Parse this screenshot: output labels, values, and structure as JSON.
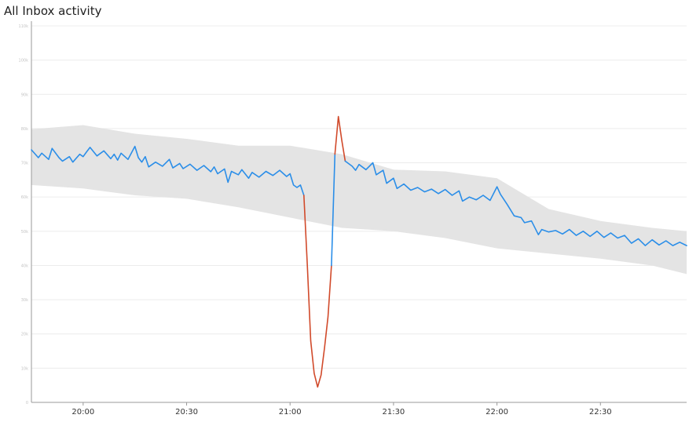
{
  "panel": {
    "title": "All Inbox activity"
  },
  "chart_data": {
    "type": "line",
    "title": "All Inbox activity",
    "xlabel": "",
    "ylabel": "",
    "x_range": [
      "19:45",
      "22:55"
    ],
    "ylim": [
      0,
      110000
    ],
    "y_ticks": [
      {
        "value": 0,
        "label": "0"
      },
      {
        "value": 10000,
        "label": "10k"
      },
      {
        "value": 20000,
        "label": "20k"
      },
      {
        "value": 30000,
        "label": "30k"
      },
      {
        "value": 40000,
        "label": "40k"
      },
      {
        "value": 50000,
        "label": "50k"
      },
      {
        "value": 60000,
        "label": "60k"
      },
      {
        "value": 70000,
        "label": "70k"
      },
      {
        "value": 80000,
        "label": "80k"
      },
      {
        "value": 90000,
        "label": "90k"
      },
      {
        "value": 100000,
        "label": "100k"
      },
      {
        "value": 110000,
        "label": "110k"
      }
    ],
    "x_ticks": [
      {
        "time": "20:00",
        "label": "20:00"
      },
      {
        "time": "20:30",
        "label": "20:30"
      },
      {
        "time": "21:00",
        "label": "21:00"
      },
      {
        "time": "21:30",
        "label": "21:30"
      },
      {
        "time": "22:00",
        "label": "22:00"
      },
      {
        "time": "22:30",
        "label": "22:30"
      }
    ],
    "grid": true,
    "legend": "none",
    "colors": {
      "line": "#2b8ee8",
      "anomaly": "#d14a2b",
      "band": "#e4e4e4",
      "grid": "#ececec",
      "axis": "#9a9a9a"
    },
    "band": {
      "x": [
        "19:45",
        "20:00",
        "20:15",
        "20:30",
        "20:45",
        "21:00",
        "21:15",
        "21:30",
        "21:45",
        "22:00",
        "22:15",
        "22:30",
        "22:45",
        "22:55"
      ],
      "upper": [
        79800,
        81000,
        78500,
        77000,
        75000,
        75000,
        72500,
        68000,
        67500,
        65500,
        56500,
        53000,
        51000,
        50000
      ],
      "lower": [
        63500,
        62500,
        60500,
        59500,
        57000,
        54000,
        51000,
        50000,
        48000,
        45000,
        43500,
        42000,
        40000,
        37500
      ]
    },
    "series": [
      {
        "values": [
          {
            "x": "19:45",
            "y": 73800
          },
          {
            "x": "19:47",
            "y": 71500
          },
          {
            "x": "19:48",
            "y": 72800
          },
          {
            "x": "19:50",
            "y": 71000
          },
          {
            "x": "19:51",
            "y": 74200
          },
          {
            "x": "19:53",
            "y": 71500
          },
          {
            "x": "19:54",
            "y": 70500
          },
          {
            "x": "19:56",
            "y": 71800
          },
          {
            "x": "19:57",
            "y": 70200
          },
          {
            "x": "19:59",
            "y": 72500
          },
          {
            "x": "20:00",
            "y": 71800
          },
          {
            "x": "20:01",
            "y": 73200
          },
          {
            "x": "20:02",
            "y": 74500
          },
          {
            "x": "20:04",
            "y": 72000
          },
          {
            "x": "20:06",
            "y": 73500
          },
          {
            "x": "20:08",
            "y": 71200
          },
          {
            "x": "20:09",
            "y": 72500
          },
          {
            "x": "20:10",
            "y": 70800
          },
          {
            "x": "20:11",
            "y": 72800
          },
          {
            "x": "20:13",
            "y": 71000
          },
          {
            "x": "20:15",
            "y": 74800
          },
          {
            "x": "20:16",
            "y": 71500
          },
          {
            "x": "20:17",
            "y": 70200
          },
          {
            "x": "20:18",
            "y": 71800
          },
          {
            "x": "20:19",
            "y": 68800
          },
          {
            "x": "20:21",
            "y": 70200
          },
          {
            "x": "20:23",
            "y": 69000
          },
          {
            "x": "20:25",
            "y": 71000
          },
          {
            "x": "20:26",
            "y": 68500
          },
          {
            "x": "20:28",
            "y": 69800
          },
          {
            "x": "20:29",
            "y": 68300
          },
          {
            "x": "20:31",
            "y": 69600
          },
          {
            "x": "20:33",
            "y": 67800
          },
          {
            "x": "20:35",
            "y": 69200
          },
          {
            "x": "20:37",
            "y": 67400
          },
          {
            "x": "20:38",
            "y": 68800
          },
          {
            "x": "20:39",
            "y": 66800
          },
          {
            "x": "20:41",
            "y": 68200
          },
          {
            "x": "20:42",
            "y": 64300
          },
          {
            "x": "20:43",
            "y": 67500
          },
          {
            "x": "20:45",
            "y": 66500
          },
          {
            "x": "20:46",
            "y": 68000
          },
          {
            "x": "20:48",
            "y": 65500
          },
          {
            "x": "20:49",
            "y": 67200
          },
          {
            "x": "20:51",
            "y": 65800
          },
          {
            "x": "20:53",
            "y": 67500
          },
          {
            "x": "20:55",
            "y": 66300
          },
          {
            "x": "20:57",
            "y": 67800
          },
          {
            "x": "20:59",
            "y": 66000
          },
          {
            "x": "21:00",
            "y": 66800
          },
          {
            "x": "21:01",
            "y": 63500
          },
          {
            "x": "21:02",
            "y": 62800
          },
          {
            "x": "21:03",
            "y": 63500
          },
          {
            "x": "21:04",
            "y": 60500
          }
        ]
      },
      {
        "values": [
          {
            "x": "21:04",
            "y": 60500
          },
          {
            "x": "21:05",
            "y": 40000
          },
          {
            "x": "21:06",
            "y": 18000
          },
          {
            "x": "21:07",
            "y": 8500
          },
          {
            "x": "21:08",
            "y": 4500
          },
          {
            "x": "21:09",
            "y": 8000
          },
          {
            "x": "21:10",
            "y": 16000
          },
          {
            "x": "21:11",
            "y": 25000
          },
          {
            "x": "21:12",
            "y": 40000
          }
        ]
      },
      {
        "values": [
          {
            "x": "21:12",
            "y": 40000
          },
          {
            "x": "21:13",
            "y": 72500
          }
        ]
      },
      {
        "values": [
          {
            "x": "21:13",
            "y": 72500
          },
          {
            "x": "21:14",
            "y": 83500
          },
          {
            "x": "21:15",
            "y": 76500
          },
          {
            "x": "21:16",
            "y": 70500
          }
        ]
      },
      {
        "values": [
          {
            "x": "21:16",
            "y": 70500
          },
          {
            "x": "21:18",
            "y": 69000
          },
          {
            "x": "21:19",
            "y": 67800
          },
          {
            "x": "21:20",
            "y": 69500
          },
          {
            "x": "21:22",
            "y": 68000
          },
          {
            "x": "21:24",
            "y": 70000
          },
          {
            "x": "21:25",
            "y": 66500
          },
          {
            "x": "21:27",
            "y": 67800
          },
          {
            "x": "21:28",
            "y": 64000
          },
          {
            "x": "21:30",
            "y": 65500
          },
          {
            "x": "21:31",
            "y": 62500
          },
          {
            "x": "21:33",
            "y": 63800
          },
          {
            "x": "21:35",
            "y": 62000
          },
          {
            "x": "21:37",
            "y": 62800
          },
          {
            "x": "21:39",
            "y": 61500
          },
          {
            "x": "21:41",
            "y": 62300
          },
          {
            "x": "21:43",
            "y": 61000
          },
          {
            "x": "21:45",
            "y": 62200
          },
          {
            "x": "21:47",
            "y": 60500
          },
          {
            "x": "21:49",
            "y": 61800
          },
          {
            "x": "21:50",
            "y": 58800
          },
          {
            "x": "21:52",
            "y": 60000
          },
          {
            "x": "21:54",
            "y": 59200
          },
          {
            "x": "21:56",
            "y": 60500
          },
          {
            "x": "21:58",
            "y": 59000
          },
          {
            "x": "22:00",
            "y": 63000
          },
          {
            "x": "22:01",
            "y": 60800
          },
          {
            "x": "22:03",
            "y": 57800
          },
          {
            "x": "22:05",
            "y": 54500
          },
          {
            "x": "22:07",
            "y": 54000
          },
          {
            "x": "22:08",
            "y": 52500
          },
          {
            "x": "22:10",
            "y": 53000
          },
          {
            "x": "22:12",
            "y": 49000
          },
          {
            "x": "22:13",
            "y": 50500
          },
          {
            "x": "22:15",
            "y": 49800
          },
          {
            "x": "22:17",
            "y": 50200
          },
          {
            "x": "22:19",
            "y": 49200
          },
          {
            "x": "22:21",
            "y": 50500
          },
          {
            "x": "22:23",
            "y": 48800
          },
          {
            "x": "22:25",
            "y": 50000
          },
          {
            "x": "22:27",
            "y": 48500
          },
          {
            "x": "22:29",
            "y": 50000
          },
          {
            "x": "22:31",
            "y": 48200
          },
          {
            "x": "22:33",
            "y": 49500
          },
          {
            "x": "22:35",
            "y": 48000
          },
          {
            "x": "22:37",
            "y": 48800
          },
          {
            "x": "22:39",
            "y": 46500
          },
          {
            "x": "22:41",
            "y": 47800
          },
          {
            "x": "22:43",
            "y": 45800
          },
          {
            "x": "22:45",
            "y": 47500
          },
          {
            "x": "22:47",
            "y": 46000
          },
          {
            "x": "22:49",
            "y": 47200
          },
          {
            "x": "22:51",
            "y": 45800
          },
          {
            "x": "22:53",
            "y": 46800
          },
          {
            "x": "22:55",
            "y": 45800
          }
        ]
      }
    ],
    "series_status": [
      "normal",
      "anomaly",
      "normal",
      "anomaly",
      "normal"
    ]
  }
}
